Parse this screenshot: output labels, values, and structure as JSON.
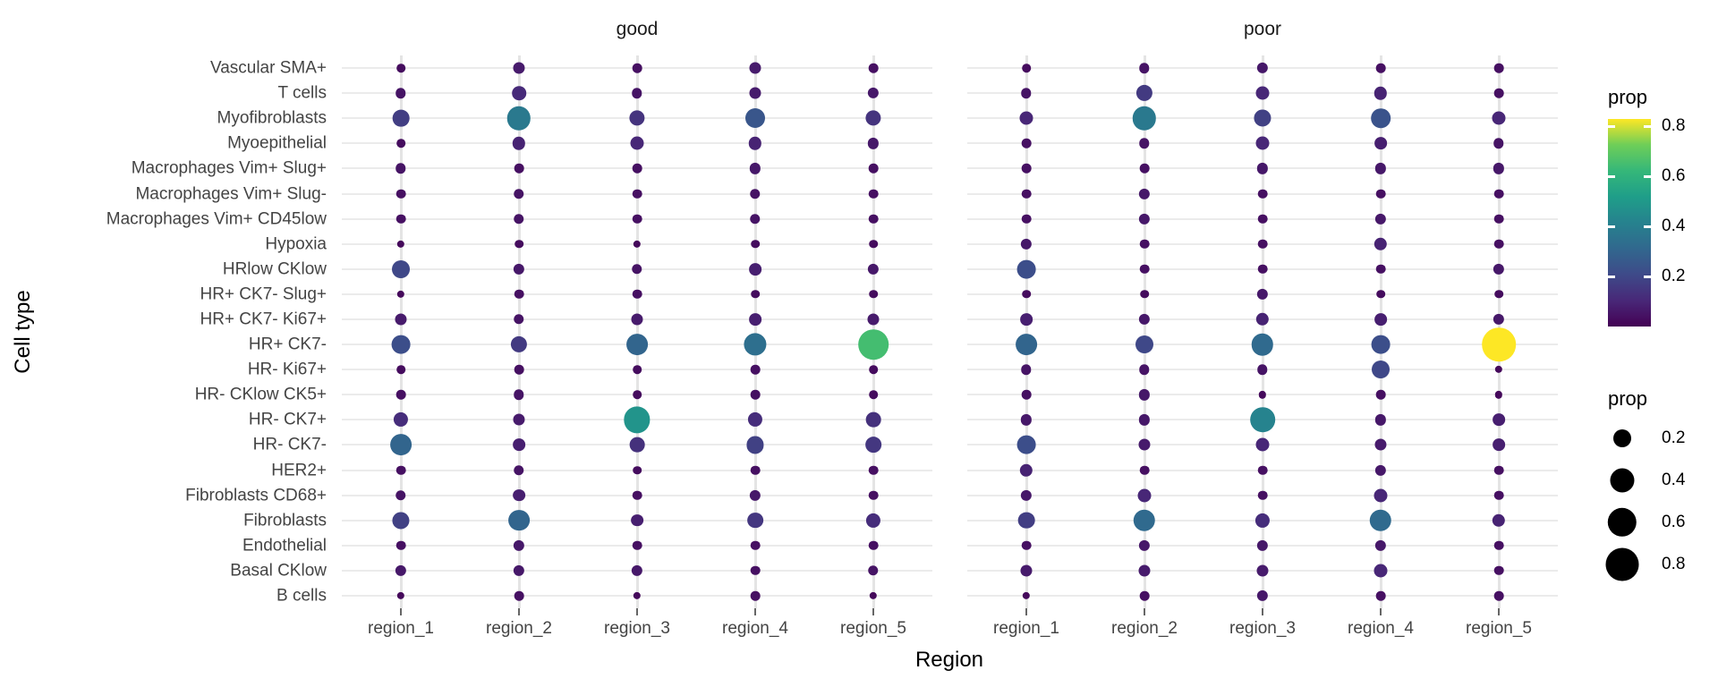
{
  "chart_data": {
    "type": "scatter",
    "subtype": "faceted-bubble-dot-plot",
    "xlabel": "Region",
    "ylabel": "Cell type",
    "x_categories": [
      "region_1",
      "region_2",
      "region_3",
      "region_4",
      "region_5"
    ],
    "y_categories": [
      "Vascular SMA+",
      "T cells",
      "Myofibroblasts",
      "Myoepithelial",
      "Macrophages Vim+ Slug+",
      "Macrophages Vim+ Slug-",
      "Macrophages Vim+ CD45low",
      "Hypoxia",
      "HRlow CKlow",
      "HR+ CK7- Slug+",
      "HR+ CK7- Ki67+",
      "HR+ CK7-",
      "HR- Ki67+",
      "HR- CKlow CK5+",
      "HR- CK7+",
      "HR- CK7-",
      "HER2+",
      "Fibroblasts CD68+",
      "Fibroblasts",
      "Endothelial",
      "Basal CKlow",
      "B cells"
    ],
    "facets": [
      {
        "name": "good",
        "values": [
          [
            0.03,
            0.07,
            0.04,
            0.07,
            0.04
          ],
          [
            0.05,
            0.11,
            0.05,
            0.07,
            0.06
          ],
          [
            0.17,
            0.38,
            0.14,
            0.25,
            0.14
          ],
          [
            0.03,
            0.09,
            0.1,
            0.09,
            0.06
          ],
          [
            0.05,
            0.04,
            0.04,
            0.06,
            0.04
          ],
          [
            0.04,
            0.05,
            0.04,
            0.05,
            0.04
          ],
          [
            0.04,
            0.05,
            0.04,
            0.05,
            0.04
          ],
          [
            0.02,
            0.03,
            0.02,
            0.03,
            0.03
          ],
          [
            0.2,
            0.06,
            0.05,
            0.08,
            0.06
          ],
          [
            0.02,
            0.04,
            0.04,
            0.03,
            0.03
          ],
          [
            0.07,
            0.05,
            0.07,
            0.08,
            0.07
          ],
          [
            0.22,
            0.16,
            0.3,
            0.34,
            0.65
          ],
          [
            0.03,
            0.04,
            0.03,
            0.04,
            0.03
          ],
          [
            0.04,
            0.05,
            0.03,
            0.04,
            0.03
          ],
          [
            0.12,
            0.07,
            0.48,
            0.12,
            0.13
          ],
          [
            0.3,
            0.08,
            0.13,
            0.18,
            0.15
          ],
          [
            0.04,
            0.05,
            0.03,
            0.04,
            0.04
          ],
          [
            0.05,
            0.08,
            0.04,
            0.06,
            0.04
          ],
          [
            0.18,
            0.3,
            0.08,
            0.15,
            0.12
          ],
          [
            0.04,
            0.06,
            0.04,
            0.04,
            0.04
          ],
          [
            0.06,
            0.06,
            0.06,
            0.04,
            0.05
          ],
          [
            0.02,
            0.04,
            0.02,
            0.04,
            0.02
          ]
        ]
      },
      {
        "name": "poor",
        "values": [
          [
            0.03,
            0.05,
            0.06,
            0.04,
            0.04
          ],
          [
            0.05,
            0.16,
            0.1,
            0.09,
            0.04
          ],
          [
            0.1,
            0.38,
            0.18,
            0.24,
            0.1
          ],
          [
            0.04,
            0.05,
            0.1,
            0.08,
            0.05
          ],
          [
            0.04,
            0.04,
            0.06,
            0.06,
            0.06
          ],
          [
            0.04,
            0.06,
            0.04,
            0.04,
            0.04
          ],
          [
            0.04,
            0.06,
            0.04,
            0.06,
            0.04
          ],
          [
            0.06,
            0.04,
            0.04,
            0.09,
            0.04
          ],
          [
            0.22,
            0.04,
            0.04,
            0.04,
            0.06
          ],
          [
            0.03,
            0.03,
            0.06,
            0.03,
            0.03
          ],
          [
            0.08,
            0.06,
            0.09,
            0.08,
            0.06
          ],
          [
            0.3,
            0.2,
            0.32,
            0.22,
            0.83
          ],
          [
            0.05,
            0.05,
            0.05,
            0.2,
            0.02
          ],
          [
            0.04,
            0.06,
            0.02,
            0.04,
            0.02
          ],
          [
            0.06,
            0.06,
            0.42,
            0.06,
            0.08
          ],
          [
            0.22,
            0.07,
            0.1,
            0.07,
            0.08
          ],
          [
            0.09,
            0.04,
            0.04,
            0.06,
            0.04
          ],
          [
            0.06,
            0.1,
            0.04,
            0.1,
            0.04
          ],
          [
            0.17,
            0.32,
            0.12,
            0.32,
            0.09
          ],
          [
            0.04,
            0.06,
            0.06,
            0.06,
            0.04
          ],
          [
            0.07,
            0.07,
            0.07,
            0.1,
            0.04
          ],
          [
            0.02,
            0.04,
            0.06,
            0.04,
            0.04
          ]
        ]
      }
    ],
    "color_scale": {
      "label": "prop",
      "palette": "viridis",
      "domain": [
        0,
        0.83
      ],
      "tick_values": [
        0.8,
        0.6,
        0.4,
        0.2
      ],
      "tick_labels": [
        "0.8",
        "0.6",
        "0.4",
        "0.2"
      ],
      "stop_positions": [
        0,
        0.125,
        0.25,
        0.375,
        0.5,
        0.625,
        0.75,
        0.875,
        1
      ],
      "stop_colors": [
        "#440154",
        "#482878",
        "#3e4a89",
        "#31688e",
        "#26828e",
        "#1f9e89",
        "#35b779",
        "#6ece58",
        "#fde725"
      ]
    },
    "size_scale": {
      "label": "prop",
      "key_values": [
        0.2,
        0.4,
        0.6,
        0.8
      ],
      "key_labels": [
        "0.2",
        "0.4",
        "0.6",
        "0.8"
      ]
    },
    "grid": true,
    "legend_position": "right"
  },
  "colors": {
    "background": "#ffffff",
    "grid_horizontal": "#ebebeb",
    "grid_vertical": "#e4e4e4",
    "axis_text": "#444444",
    "facet_title_text": "#1a1a1a",
    "axis_title_text": "#000000",
    "tick_mark": "#666666",
    "size_key_dot": "#000000"
  }
}
